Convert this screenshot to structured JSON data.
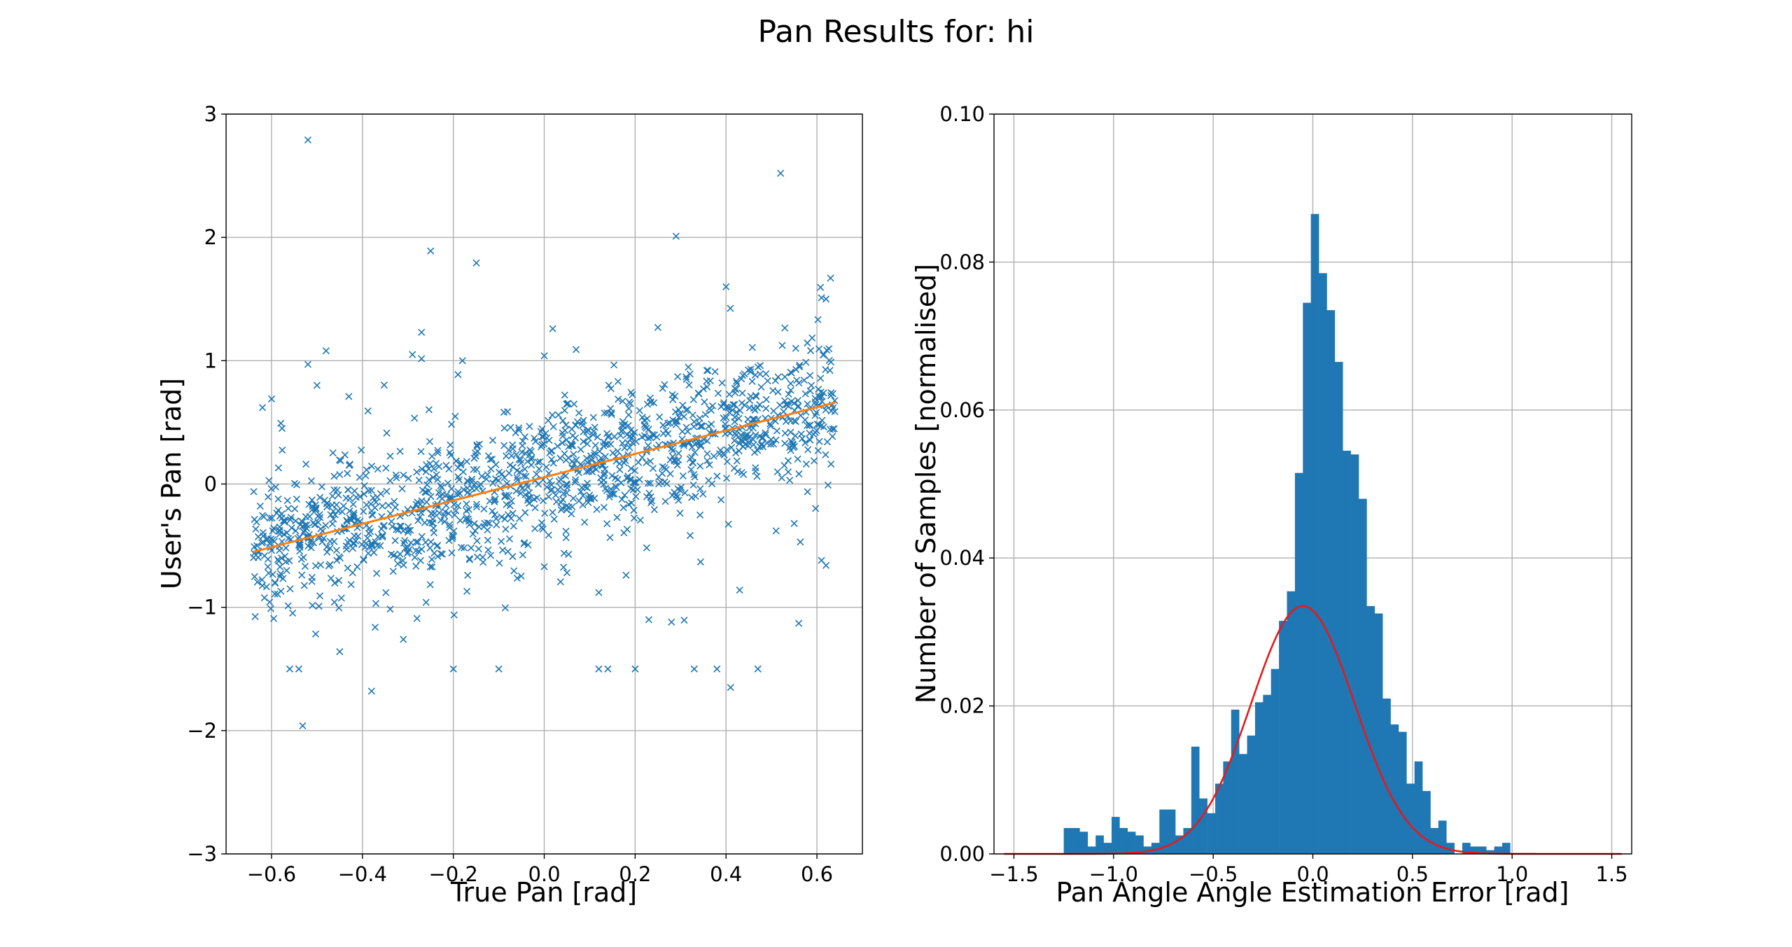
{
  "figure": {
    "suptitle": "Pan Results for: hi"
  },
  "colors": {
    "scatter": "#1f77b4",
    "fit_line": "#ff7f0e",
    "bars": "#1f77b4",
    "gaussian": "#e41a1c",
    "grid": "#b0b0b0"
  },
  "chart_data": [
    {
      "type": "scatter",
      "title": "",
      "xlabel": "True Pan [rad]",
      "ylabel": "User's Pan [rad]",
      "xlim": [
        -0.7,
        0.7
      ],
      "ylim": [
        -3,
        3
      ],
      "xticks": [
        -0.6,
        -0.4,
        -0.2,
        0.0,
        0.2,
        0.4,
        0.6
      ],
      "xtick_labels": [
        "−0.6",
        "−0.4",
        "−0.2",
        "0.0",
        "0.2",
        "0.4",
        "0.6"
      ],
      "yticks": [
        -3,
        -2,
        -1,
        0,
        1,
        2,
        3
      ],
      "ytick_labels": [
        "−3",
        "−2",
        "−1",
        "0",
        "1",
        "2",
        "3"
      ],
      "grid": true,
      "marker": "x",
      "point_cloud": {
        "n_points": 1400,
        "x_range": [
          -0.64,
          0.64
        ],
        "trend_slope": 0.95,
        "trend_intercept": 0.06,
        "noise_sd": 0.27,
        "seed": 7
      },
      "outliers": [
        [
          -0.52,
          2.79
        ],
        [
          0.52,
          2.52
        ],
        [
          -0.25,
          1.89
        ],
        [
          0.29,
          2.01
        ],
        [
          -0.48,
          1.08
        ],
        [
          -0.29,
          1.05
        ],
        [
          -0.27,
          1.23
        ],
        [
          -0.18,
          1.0
        ],
        [
          0.0,
          1.04
        ],
        [
          0.07,
          1.09
        ],
        [
          0.4,
          1.6
        ],
        [
          0.25,
          1.27
        ],
        [
          0.63,
          1.67
        ],
        [
          0.61,
          1.51
        ],
        [
          0.62,
          1.5
        ],
        [
          -0.56,
          -1.5
        ],
        [
          -0.54,
          -1.5
        ],
        [
          -0.2,
          -1.5
        ],
        [
          -0.1,
          -1.5
        ],
        [
          0.12,
          -1.5
        ],
        [
          0.14,
          -1.5
        ],
        [
          0.2,
          -1.5
        ],
        [
          0.33,
          -1.5
        ],
        [
          0.38,
          -1.5
        ],
        [
          0.47,
          -1.5
        ],
        [
          0.41,
          -1.65
        ],
        [
          -0.38,
          -1.68
        ],
        [
          -0.45,
          -1.36
        ],
        [
          -0.31,
          -1.26
        ],
        [
          -0.28,
          -1.09
        ],
        [
          -0.26,
          -0.96
        ],
        [
          0.23,
          -1.1
        ],
        [
          0.28,
          -1.12
        ],
        [
          0.56,
          -1.13
        ],
        [
          0.43,
          -0.86
        ],
        [
          -0.17,
          -0.87
        ],
        [
          0.0,
          -0.67
        ],
        [
          0.05,
          -0.72
        ],
        [
          0.12,
          -0.88
        ],
        [
          0.18,
          -0.74
        ],
        [
          0.61,
          -0.62
        ],
        [
          0.62,
          -0.66
        ],
        [
          -0.62,
          0.62
        ],
        [
          -0.6,
          0.69
        ],
        [
          -0.52,
          0.97
        ],
        [
          -0.5,
          0.8
        ],
        [
          -0.43,
          0.71
        ],
        [
          0.51,
          -0.38
        ],
        [
          0.55,
          -0.32
        ],
        [
          0.42,
          0.74
        ]
      ],
      "fit_line": {
        "x": [
          -0.64,
          0.64
        ],
        "y": [
          -0.55,
          0.66
        ]
      }
    },
    {
      "type": "bar",
      "title": "",
      "xlabel": "Pan Angle Angle Estimation Error [rad]",
      "ylabel": "Number of Samples [normalised]",
      "xlim": [
        -1.6,
        1.6
      ],
      "ylim": [
        0.0,
        0.1
      ],
      "xticks": [
        -1.5,
        -1.0,
        -0.5,
        0.0,
        0.5,
        1.0,
        1.5
      ],
      "xtick_labels": [
        "−1.5",
        "−1.0",
        "−0.5",
        "0.0",
        "0.5",
        "1.0",
        "1.5"
      ],
      "yticks": [
        0.0,
        0.02,
        0.04,
        0.06,
        0.08,
        0.1
      ],
      "ytick_labels": [
        "0.00",
        "0.02",
        "0.04",
        "0.06",
        "0.08",
        "0.10"
      ],
      "grid": true,
      "bin_start": -1.25,
      "bin_width": 0.04,
      "values": [
        0.0035,
        0.0035,
        0.003,
        0.001,
        0.0025,
        0.0015,
        0.005,
        0.0035,
        0.003,
        0.0025,
        0.001,
        0.0015,
        0.006,
        0.006,
        0.0025,
        0.0035,
        0.0145,
        0.0075,
        0.0055,
        0.0095,
        0.0125,
        0.0195,
        0.0135,
        0.016,
        0.0205,
        0.0215,
        0.025,
        0.0315,
        0.0355,
        0.0515,
        0.0745,
        0.0865,
        0.0785,
        0.0735,
        0.0665,
        0.0545,
        0.054,
        0.048,
        0.0335,
        0.0325,
        0.021,
        0.0175,
        0.0165,
        0.0095,
        0.0125,
        0.0085,
        0.0035,
        0.0045,
        0.0015,
        0.0,
        0.0015,
        0.001,
        0.001,
        0.0005,
        0.001,
        0.0015
      ],
      "gaussian_fit": {
        "mean": -0.05,
        "sd": 0.26,
        "peak": 0.0335,
        "x_range": [
          -1.55,
          1.55
        ]
      }
    }
  ]
}
